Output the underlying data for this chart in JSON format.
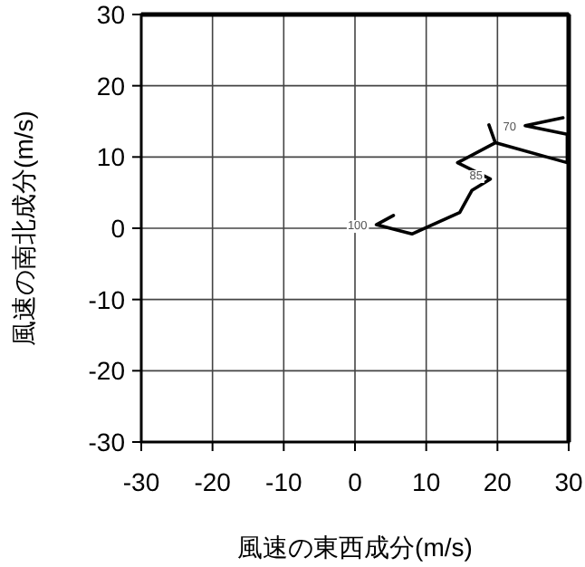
{
  "chart_data": {
    "type": "line",
    "xlabel": "風速の東西成分(m/s)",
    "ylabel": "風速の南北成分(m/s)",
    "series": [
      {
        "color": "#000000",
        "x": [
          5.4,
          3.0,
          8.0,
          14.7,
          16.4,
          19.0,
          14.4,
          19.7,
          18.8,
          19.7,
          29.8,
          29.8,
          23.9,
          29.2
        ],
        "values": [
          1.8,
          0.5,
          -0.8,
          2.2,
          5.3,
          6.9,
          9.2,
          12.0,
          14.5,
          12.0,
          9.2,
          13.2,
          14.4,
          15.5
        ]
      }
    ],
    "xlim": [
      -30,
      30
    ],
    "ylim": [
      -30,
      30
    ],
    "xticks": [
      -30,
      -20,
      -10,
      0,
      10,
      20,
      30
    ],
    "yticks": [
      -30,
      -20,
      -10,
      0,
      10,
      20,
      30
    ],
    "grid": true,
    "annotations": [
      {
        "text": "100",
        "x": 3.0,
        "y": 0.5
      },
      {
        "text": "85",
        "x": 19.2,
        "y": 7.5
      },
      {
        "text": "70",
        "x": 23.9,
        "y": 14.4
      }
    ]
  }
}
